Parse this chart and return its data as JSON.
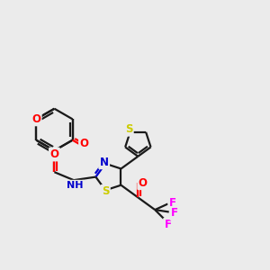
{
  "bg_color": "#ebebeb",
  "bond_color": "#1a1a1a",
  "bond_width": 1.6,
  "atom_colors": {
    "O": "#ff0000",
    "N": "#0000cc",
    "S": "#cccc00",
    "F": "#ff00ff",
    "C": "#1a1a1a"
  },
  "font_size": 8.5,
  "fig_size": [
    3.0,
    3.0
  ],
  "dpi": 100,
  "xlim": [
    0,
    10
  ],
  "ylim": [
    0,
    10
  ]
}
